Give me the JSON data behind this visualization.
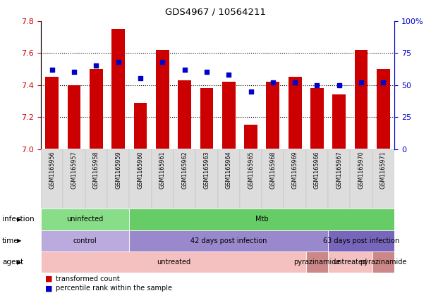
{
  "title": "GDS4967 / 10564211",
  "samples": [
    "GSM1165956",
    "GSM1165957",
    "GSM1165958",
    "GSM1165959",
    "GSM1165960",
    "GSM1165961",
    "GSM1165962",
    "GSM1165963",
    "GSM1165964",
    "GSM1165965",
    "GSM1165968",
    "GSM1165969",
    "GSM1165966",
    "GSM1165967",
    "GSM1165970",
    "GSM1165971"
  ],
  "bar_values": [
    7.45,
    7.4,
    7.5,
    7.75,
    7.29,
    7.62,
    7.43,
    7.38,
    7.42,
    7.15,
    7.42,
    7.45,
    7.38,
    7.34,
    7.62,
    7.5
  ],
  "dot_values": [
    62,
    60,
    65,
    68,
    55,
    68,
    62,
    60,
    58,
    45,
    52,
    52,
    50,
    50,
    52,
    52
  ],
  "ymin": 7.0,
  "ymax": 7.8,
  "y2min": 0,
  "y2max": 100,
  "yticks": [
    7.0,
    7.2,
    7.4,
    7.6,
    7.8
  ],
  "y2ticks": [
    0,
    25,
    50,
    75,
    100
  ],
  "bar_color": "#cc0000",
  "dot_color": "#0000cc",
  "bar_width": 0.6,
  "infection_regions": [
    {
      "label": "uninfected",
      "start": 0,
      "end": 4,
      "color": "#88dd88"
    },
    {
      "label": "Mtb",
      "start": 4,
      "end": 16,
      "color": "#66cc66"
    }
  ],
  "time_regions": [
    {
      "label": "control",
      "start": 0,
      "end": 4,
      "color": "#bbaadd"
    },
    {
      "label": "42 days post infection",
      "start": 4,
      "end": 13,
      "color": "#9988cc"
    },
    {
      "label": "63 days post infection",
      "start": 13,
      "end": 16,
      "color": "#7766bb"
    }
  ],
  "agent_regions": [
    {
      "label": "untreated",
      "start": 0,
      "end": 12,
      "color": "#f5c0c0"
    },
    {
      "label": "pyrazinamide",
      "start": 12,
      "end": 13,
      "color": "#cc8888"
    },
    {
      "label": "untreated",
      "start": 13,
      "end": 15,
      "color": "#f5c0c0"
    },
    {
      "label": "pyrazinamide",
      "start": 15,
      "end": 16,
      "color": "#cc8888"
    }
  ],
  "legend_items": [
    {
      "label": "transformed count",
      "color": "#cc0000"
    },
    {
      "label": "percentile rank within the sample",
      "color": "#0000cc"
    }
  ],
  "row_labels": [
    "infection",
    "time",
    "agent"
  ],
  "tick_color_left": "#cc0000",
  "tick_color_right": "#0000cc",
  "bg_color": "#ffffff"
}
